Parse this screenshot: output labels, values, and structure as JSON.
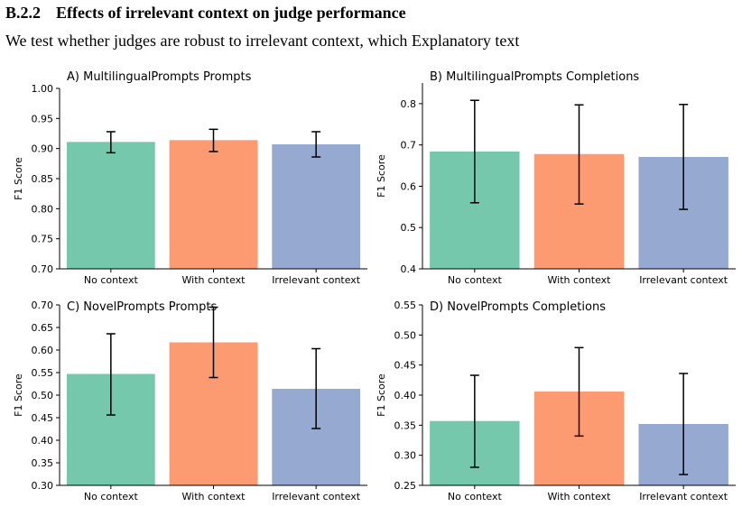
{
  "section": {
    "number": "B.2.2",
    "title": "Effects of irrelevant context on judge performance",
    "intro": "We test whether judges are robust to irrelevant context, which Explanatory text"
  },
  "colors": {
    "No context": "#76c8ad",
    "With context": "#fc9a72",
    "Irrelevant context": "#95a9d1"
  },
  "chart_data": [
    {
      "type": "bar",
      "title": "A) MultilingualPrompts Prompts",
      "ylabel": "F1 Score",
      "categories": [
        "No context",
        "With context",
        "Irrelevant context"
      ],
      "values": [
        0.911,
        0.914,
        0.907
      ],
      "error_low": [
        0.893,
        0.895,
        0.886
      ],
      "error_high": [
        0.928,
        0.932,
        0.928
      ],
      "ylim": [
        0.7,
        1.0
      ],
      "yticks": [
        0.7,
        0.75,
        0.8,
        0.85,
        0.9,
        0.95,
        1.0
      ],
      "ytick_labels": [
        "0.70",
        "0.75",
        "0.80",
        "0.85",
        "0.90",
        "0.95",
        "1.00"
      ],
      "grid": false
    },
    {
      "type": "bar",
      "title": "B) MultilingualPrompts Completions",
      "ylabel": "F1 Score",
      "categories": [
        "No context",
        "With context",
        "Irrelevant context"
      ],
      "values": [
        0.684,
        0.678,
        0.671
      ],
      "error_low": [
        0.56,
        0.557,
        0.544
      ],
      "error_high": [
        0.808,
        0.797,
        0.798
      ],
      "ylim": [
        0.4,
        0.85
      ],
      "yticks": [
        0.4,
        0.5,
        0.6,
        0.7,
        0.8
      ],
      "ytick_labels": [
        "0.4",
        "0.5",
        "0.6",
        "0.7",
        "0.8"
      ],
      "grid": false
    },
    {
      "type": "bar",
      "title": "C) NovelPrompts Prompts",
      "ylabel": "F1 Score",
      "categories": [
        "No context",
        "With context",
        "Irrelevant context"
      ],
      "values": [
        0.547,
        0.617,
        0.514
      ],
      "error_low": [
        0.456,
        0.539,
        0.426
      ],
      "error_high": [
        0.636,
        0.695,
        0.603
      ],
      "ylim": [
        0.3,
        0.7
      ],
      "yticks": [
        0.3,
        0.35,
        0.4,
        0.45,
        0.5,
        0.55,
        0.6,
        0.65,
        0.7
      ],
      "ytick_labels": [
        "0.30",
        "0.35",
        "0.40",
        "0.45",
        "0.50",
        "0.55",
        "0.60",
        "0.65",
        "0.70"
      ],
      "grid": false
    },
    {
      "type": "bar",
      "title": "D) NovelPrompts Completions",
      "ylabel": "F1 Score",
      "categories": [
        "No context",
        "With context",
        "Irrelevant context"
      ],
      "values": [
        0.357,
        0.406,
        0.352
      ],
      "error_low": [
        0.28,
        0.332,
        0.268
      ],
      "error_high": [
        0.433,
        0.479,
        0.436
      ],
      "ylim": [
        0.25,
        0.55
      ],
      "yticks": [
        0.25,
        0.3,
        0.35,
        0.4,
        0.45,
        0.5,
        0.55
      ],
      "ytick_labels": [
        "0.25",
        "0.30",
        "0.35",
        "0.40",
        "0.45",
        "0.50",
        "0.55"
      ],
      "grid": false
    }
  ]
}
